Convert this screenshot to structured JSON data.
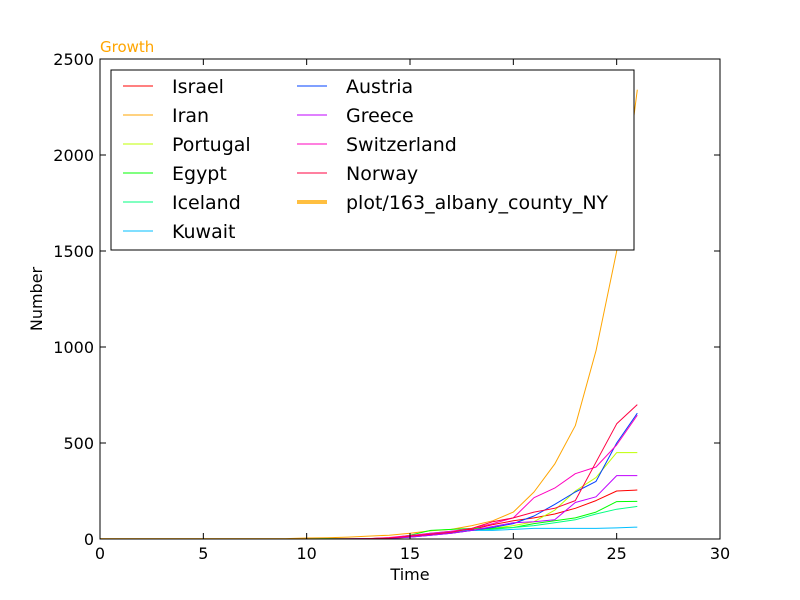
{
  "chart_data": {
    "type": "line",
    "title": "Growth",
    "title_color": "#ffa500",
    "xlabel": "Time",
    "ylabel": "Number",
    "xlim": [
      0,
      30
    ],
    "ylim": [
      0,
      2500
    ],
    "xticks": [
      0,
      5,
      10,
      15,
      20,
      25,
      30
    ],
    "yticks": [
      0,
      500,
      1000,
      1500,
      2000,
      2500
    ],
    "grid": false,
    "legend_position": "top-left",
    "legend_columns": 2,
    "x": [
      0,
      1,
      2,
      3,
      4,
      5,
      6,
      7,
      8,
      9,
      10,
      11,
      12,
      13,
      14,
      15,
      16,
      17,
      18,
      19,
      20,
      21,
      22,
      23,
      24,
      25,
      26
    ],
    "series": [
      {
        "name": "Israel",
        "color": "#ff0000",
        "width": 1,
        "values": [
          0,
          0,
          0,
          0,
          0,
          0,
          0,
          0,
          0,
          0,
          0,
          1,
          1,
          2,
          5,
          15,
          25,
          35,
          50,
          75,
          95,
          110,
          130,
          160,
          200,
          250,
          255
        ]
      },
      {
        "name": "Iran",
        "color": "#ffa500",
        "width": 1,
        "values": [
          2,
          2,
          2,
          2,
          2,
          2,
          2,
          2,
          2,
          2,
          5,
          7,
          10,
          15,
          20,
          30,
          43,
          50,
          70,
          95,
          140,
          245,
          390,
          590,
          980,
          1500,
          2340
        ]
      },
      {
        "name": "Portugal",
        "color": "#bfff00",
        "width": 1,
        "values": [
          0,
          0,
          0,
          0,
          0,
          0,
          0,
          0,
          0,
          0,
          0,
          0,
          0,
          0,
          2,
          10,
          20,
          30,
          45,
          55,
          70,
          90,
          150,
          250,
          320,
          450,
          450
        ]
      },
      {
        "name": "Egypt",
        "color": "#00ff00",
        "width": 1,
        "values": [
          0,
          0,
          0,
          0,
          0,
          0,
          0,
          0,
          0,
          0,
          0,
          1,
          1,
          1,
          3,
          20,
          45,
          50,
          55,
          55,
          60,
          80,
          95,
          110,
          140,
          195,
          196
        ]
      },
      {
        "name": "Iceland",
        "color": "#00ff80",
        "width": 1,
        "values": [
          0,
          0,
          0,
          0,
          0,
          0,
          0,
          0,
          0,
          0,
          0,
          0,
          0,
          1,
          5,
          15,
          30,
          35,
          45,
          50,
          60,
          70,
          85,
          100,
          130,
          155,
          170
        ]
      },
      {
        "name": "Kuwait",
        "color": "#00bfff",
        "width": 1,
        "values": [
          0,
          0,
          0,
          0,
          0,
          0,
          0,
          0,
          0,
          0,
          0,
          0,
          0,
          1,
          5,
          15,
          30,
          40,
          45,
          45,
          50,
          55,
          55,
          55,
          55,
          58,
          62
        ]
      },
      {
        "name": "Austria",
        "color": "#0040ff",
        "width": 1,
        "values": [
          0,
          0,
          0,
          0,
          0,
          0,
          0,
          0,
          0,
          0,
          0,
          0,
          0,
          2,
          5,
          10,
          20,
          30,
          45,
          60,
          80,
          120,
          180,
          245,
          300,
          500,
          655
        ]
      },
      {
        "name": "Greece",
        "color": "#c000ff",
        "width": 1,
        "values": [
          0,
          0,
          0,
          0,
          0,
          0,
          0,
          0,
          0,
          0,
          0,
          0,
          0,
          1,
          3,
          10,
          20,
          30,
          45,
          65,
          85,
          90,
          100,
          190,
          220,
          330,
          330
        ]
      },
      {
        "name": "Switzerland",
        "color": "#ff00bf",
        "width": 1,
        "values": [
          0,
          0,
          0,
          0,
          0,
          0,
          0,
          0,
          0,
          0,
          0,
          0,
          1,
          2,
          8,
          18,
          30,
          40,
          55,
          80,
          110,
          215,
          265,
          340,
          375,
          490,
          645
        ]
      },
      {
        "name": "Norway",
        "color": "#ff0040",
        "width": 1,
        "values": [
          0,
          0,
          0,
          0,
          0,
          0,
          0,
          0,
          0,
          0,
          0,
          0,
          0,
          2,
          5,
          15,
          25,
          35,
          55,
          90,
          110,
          140,
          160,
          200,
          400,
          600,
          700
        ]
      },
      {
        "name": "plot/163_albany_county_NY",
        "color": "#ffbf40",
        "width": 4,
        "values": [
          null,
          null,
          null,
          null,
          null,
          null,
          null,
          null,
          null,
          null,
          null,
          null,
          null,
          null,
          null,
          null,
          null,
          null,
          null,
          null,
          null,
          null,
          null,
          null,
          null,
          null,
          null
        ]
      }
    ]
  }
}
